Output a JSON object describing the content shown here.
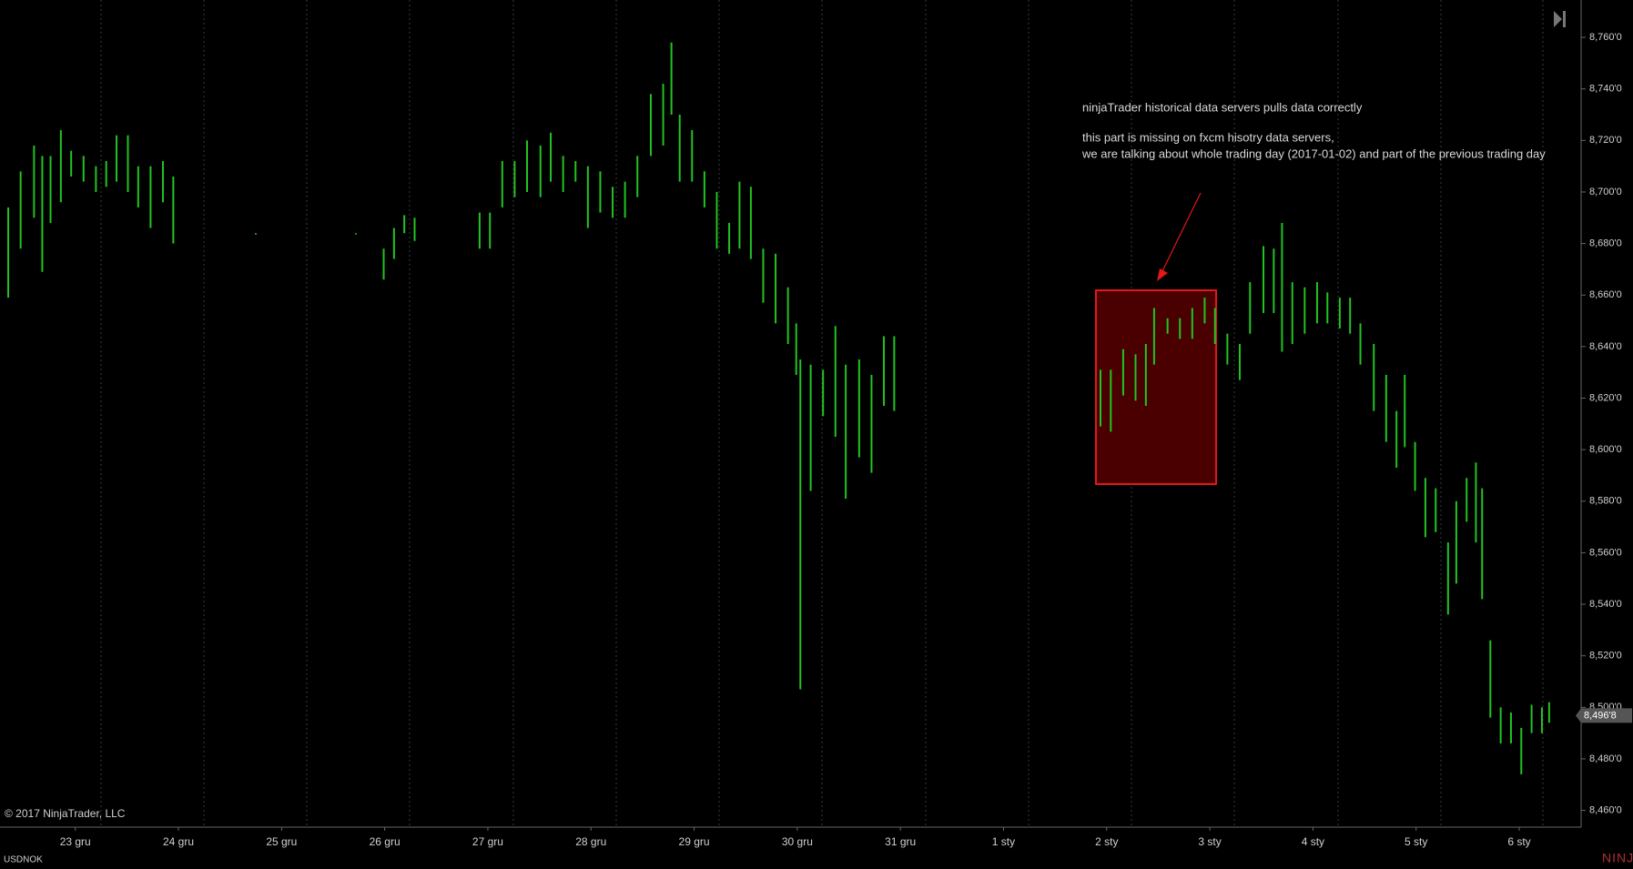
{
  "chart_data": {
    "type": "ohlc",
    "instrument": "USDNOK",
    "copyright": "© 2017 NinjaTrader, LLC",
    "annotations": [
      "ninjaTrader historical data servers pulls data correctly",
      "this part is missing on fxcm hisotry data servers,",
      "we are talking about whole trading day (2017-01-02) and part of the previous trading day"
    ],
    "xlim": [
      -0.73,
      14.6
    ],
    "xticks": [
      {
        "value": 0,
        "label": "23 gru"
      },
      {
        "value": 1,
        "label": "24 gru"
      },
      {
        "value": 2,
        "label": "25 gru"
      },
      {
        "value": 3,
        "label": "26 gru"
      },
      {
        "value": 4,
        "label": "27 gru"
      },
      {
        "value": 5,
        "label": "28 gru"
      },
      {
        "value": 6,
        "label": "29 gru"
      },
      {
        "value": 7,
        "label": "30 gru"
      },
      {
        "value": 8,
        "label": "31 gru"
      },
      {
        "value": 9,
        "label": "1 sty"
      },
      {
        "value": 10,
        "label": "2 sty"
      },
      {
        "value": 11,
        "label": "3 sty"
      },
      {
        "value": 12,
        "label": "4 sty"
      },
      {
        "value": 13,
        "label": "5 sty"
      },
      {
        "value": 14,
        "label": "6 sty"
      }
    ],
    "ylim": [
      8.4535,
      8.7745
    ],
    "yticks": [
      {
        "value": 8.46,
        "label": "8,460'0"
      },
      {
        "value": 8.48,
        "label": "8,480'0"
      },
      {
        "value": 8.5,
        "label": "8,500'0"
      },
      {
        "value": 8.52,
        "label": "8,520'0"
      },
      {
        "value": 8.54,
        "label": "8,540'0"
      },
      {
        "value": 8.56,
        "label": "8,560'0"
      },
      {
        "value": 8.58,
        "label": "8,580'0"
      },
      {
        "value": 8.6,
        "label": "8,600'0"
      },
      {
        "value": 8.62,
        "label": "8,620'0"
      },
      {
        "value": 8.64,
        "label": "8,640'0"
      },
      {
        "value": 8.66,
        "label": "8,660'0"
      },
      {
        "value": 8.68,
        "label": "8,680'0"
      },
      {
        "value": 8.7,
        "label": "8,700'0"
      },
      {
        "value": 8.72,
        "label": "8,720'0"
      },
      {
        "value": 8.74,
        "label": "8,740'0"
      },
      {
        "value": 8.76,
        "label": "8,760'0"
      }
    ],
    "last": {
      "value": 8.4968,
      "label": "8,496'8"
    },
    "series": [
      {
        "color": "#22c322",
        "x": [
          -0.65,
          -0.53,
          -0.4,
          -0.32,
          -0.24,
          -0.14,
          -0.04,
          0.08,
          0.2,
          0.3,
          0.4,
          0.51,
          0.61,
          0.73,
          0.85,
          0.95,
          1.75,
          2.72,
          2.99,
          3.09,
          3.19,
          3.29,
          3.92,
          4.02,
          4.14,
          4.26,
          4.38,
          4.51,
          4.61,
          4.73,
          4.85,
          4.97,
          5.09,
          5.21,
          5.33,
          5.45,
          5.58,
          5.7,
          5.78,
          5.86,
          5.98,
          6.1,
          6.22,
          6.34,
          6.44,
          6.55,
          6.67,
          6.79,
          6.91,
          6.99,
          7.03,
          7.13,
          7.25,
          7.37,
          7.47,
          7.6,
          7.72,
          7.84,
          7.94,
          9.94,
          10.04,
          10.16,
          10.28,
          10.38,
          10.46,
          10.59,
          10.71,
          10.83,
          10.95,
          11.05,
          11.17,
          11.29,
          11.39,
          11.52,
          11.62,
          11.7,
          11.8,
          11.92,
          12.04,
          12.14,
          12.26,
          12.36,
          12.46,
          12.59,
          12.71,
          12.81,
          12.89,
          12.99,
          13.09,
          13.19,
          13.31,
          13.39,
          13.49,
          13.58,
          13.64,
          13.72,
          13.82,
          13.92,
          14.02,
          14.12,
          14.22,
          14.29
        ],
        "high": [
          8.694,
          8.708,
          8.718,
          8.714,
          8.714,
          8.724,
          8.716,
          8.714,
          8.71,
          8.712,
          8.722,
          8.722,
          8.71,
          8.71,
          8.712,
          8.706,
          8.684,
          8.684,
          8.678,
          8.686,
          8.691,
          8.69,
          8.692,
          8.692,
          8.712,
          8.712,
          8.72,
          8.718,
          8.723,
          8.714,
          8.712,
          8.71,
          8.708,
          8.702,
          8.704,
          8.714,
          8.738,
          8.742,
          8.758,
          8.73,
          8.724,
          8.708,
          8.7,
          8.688,
          8.704,
          8.702,
          8.678,
          8.676,
          8.663,
          8.649,
          8.635,
          8.633,
          8.631,
          8.648,
          8.633,
          8.635,
          8.629,
          8.644,
          8.644,
          8.631,
          8.631,
          8.639,
          8.637,
          8.641,
          8.655,
          8.651,
          8.651,
          8.655,
          8.659,
          8.655,
          8.645,
          8.641,
          8.665,
          8.679,
          8.678,
          8.688,
          8.665,
          8.663,
          8.665,
          8.661,
          8.659,
          8.659,
          8.649,
          8.641,
          8.629,
          8.615,
          8.629,
          8.603,
          8.589,
          8.585,
          8.564,
          8.58,
          8.589,
          8.595,
          8.585,
          8.526,
          8.5,
          8.498,
          8.492,
          8.501,
          8.5,
          8.502
        ],
        "low": [
          8.659,
          8.678,
          8.69,
          8.669,
          8.688,
          8.696,
          8.706,
          8.704,
          8.7,
          8.702,
          8.704,
          8.7,
          8.694,
          8.686,
          8.696,
          8.68,
          8.684,
          8.684,
          8.666,
          8.674,
          8.684,
          8.681,
          8.678,
          8.678,
          8.694,
          8.698,
          8.7,
          8.698,
          8.704,
          8.7,
          8.704,
          8.686,
          8.692,
          8.69,
          8.69,
          8.698,
          8.714,
          8.718,
          8.73,
          8.704,
          8.704,
          8.694,
          8.678,
          8.676,
          8.678,
          8.674,
          8.657,
          8.649,
          8.641,
          8.629,
          8.507,
          8.584,
          8.613,
          8.605,
          8.581,
          8.597,
          8.591,
          8.617,
          8.615,
          8.609,
          8.607,
          8.621,
          8.619,
          8.617,
          8.633,
          8.645,
          8.643,
          8.643,
          8.649,
          8.641,
          8.633,
          8.627,
          8.645,
          8.653,
          8.653,
          8.638,
          8.641,
          8.645,
          8.649,
          8.649,
          8.647,
          8.645,
          8.633,
          8.615,
          8.603,
          8.593,
          8.601,
          8.584,
          8.566,
          8.568,
          8.536,
          8.548,
          8.572,
          8.564,
          8.542,
          8.496,
          8.486,
          8.486,
          8.474,
          8.49,
          8.49,
          8.494
        ]
      }
    ]
  }
}
